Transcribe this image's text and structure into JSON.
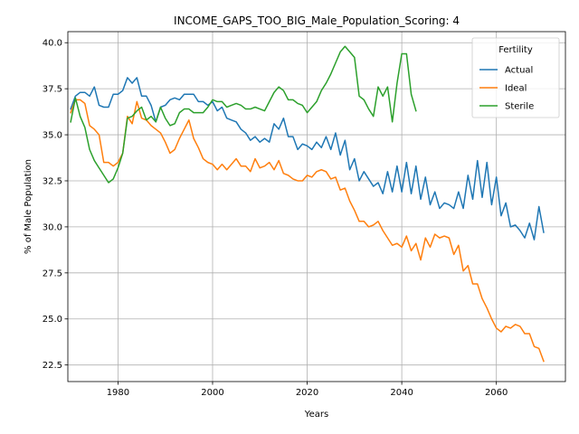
{
  "chart_data": {
    "type": "line",
    "title": "INCOME_GAPS_TOO_BIG_Male_Population_Scoring: 4",
    "xlabel": "Years",
    "ylabel": "% of Male Population",
    "xlim": [
      1969.4,
      2074.6
    ],
    "ylim": [
      21.6,
      40.6
    ],
    "xticks": [
      1980,
      2000,
      2020,
      2040,
      2060
    ],
    "yticks": [
      22.5,
      25.0,
      27.5,
      30.0,
      32.5,
      35.0,
      37.5,
      40.0
    ],
    "ytick_labels": [
      "22.5",
      "25.0",
      "27.5",
      "30.0",
      "32.5",
      "35.0",
      "37.5",
      "40.0"
    ],
    "grid": true,
    "legend": {
      "title": "Fertility",
      "placement": "top-right"
    },
    "series": [
      {
        "name": "Actual",
        "color": "#1f77b4",
        "x": [
          1970,
          1971,
          1972,
          1973,
          1974,
          1975,
          1976,
          1977,
          1978,
          1979,
          1980,
          1981,
          1982,
          1983,
          1984,
          1985,
          1986,
          1987,
          1988,
          1989,
          1990,
          1991,
          1992,
          1993,
          1994,
          1995,
          1996,
          1997,
          1998,
          1999,
          2000,
          2001,
          2002,
          2003,
          2004,
          2005,
          2006,
          2007,
          2008,
          2009,
          2010,
          2011,
          2012,
          2013,
          2014,
          2015,
          2016,
          2017,
          2018,
          2019,
          2020,
          2021,
          2022,
          2023,
          2024,
          2025,
          2026,
          2027,
          2028,
          2029,
          2030,
          2031,
          2032,
          2033,
          2034,
          2035,
          2036,
          2037,
          2038,
          2039,
          2040,
          2041,
          2042,
          2043,
          2044,
          2045,
          2046,
          2047,
          2048,
          2049,
          2050,
          2051,
          2052,
          2053,
          2054,
          2055,
          2056,
          2057,
          2058,
          2059,
          2060,
          2061,
          2062,
          2063,
          2064,
          2065,
          2066,
          2067,
          2068,
          2069,
          2070
        ],
        "values": [
          36.4,
          37.1,
          37.3,
          37.3,
          37.1,
          37.6,
          36.6,
          36.5,
          36.5,
          37.2,
          37.2,
          37.4,
          38.1,
          37.8,
          38.1,
          37.1,
          37.1,
          36.6,
          35.7,
          36.5,
          36.6,
          36.9,
          37.0,
          36.9,
          37.2,
          37.2,
          37.2,
          36.8,
          36.8,
          36.6,
          36.8,
          36.3,
          36.5,
          35.9,
          35.8,
          35.7,
          35.3,
          35.1,
          34.7,
          34.9,
          34.6,
          34.8,
          34.6,
          35.6,
          35.3,
          35.9,
          34.9,
          34.9,
          34.2,
          34.5,
          34.4,
          34.2,
          34.6,
          34.3,
          34.9,
          34.2,
          35.1,
          33.9,
          34.7,
          33.1,
          33.7,
          32.5,
          33.0,
          32.6,
          32.2,
          32.4,
          31.8,
          33.0,
          31.9,
          33.3,
          31.9,
          33.5,
          31.8,
          33.3,
          31.5,
          32.7,
          31.2,
          31.9,
          31.0,
          31.3,
          31.2,
          31.0,
          31.9,
          31.0,
          32.8,
          31.5,
          33.6,
          31.6,
          33.5,
          31.2,
          32.7,
          30.6,
          31.3,
          30.0,
          30.1,
          29.8,
          29.4,
          30.2,
          29.3,
          31.1,
          29.7
        ]
      },
      {
        "name": "Ideal",
        "color": "#ff7f0e",
        "x": [
          1970,
          1971,
          1972,
          1973,
          1974,
          1975,
          1976,
          1977,
          1978,
          1979,
          1980,
          1981,
          1982,
          1983,
          1984,
          1985,
          1986,
          1987,
          1988,
          1989,
          1990,
          1991,
          1992,
          1993,
          1994,
          1995,
          1996,
          1997,
          1998,
          1999,
          2000,
          2001,
          2002,
          2003,
          2004,
          2005,
          2006,
          2007,
          2008,
          2009,
          2010,
          2011,
          2012,
          2013,
          2014,
          2015,
          2016,
          2017,
          2018,
          2019,
          2020,
          2021,
          2022,
          2023,
          2024,
          2025,
          2026,
          2027,
          2028,
          2029,
          2030,
          2031,
          2032,
          2033,
          2034,
          2035,
          2036,
          2037,
          2038,
          2039,
          2040,
          2041,
          2042,
          2043,
          2044,
          2045,
          2046,
          2047,
          2048,
          2049,
          2050,
          2051,
          2052,
          2053,
          2054,
          2055,
          2056,
          2057,
          2058,
          2059,
          2060,
          2061,
          2062,
          2063,
          2064,
          2065,
          2066,
          2067,
          2068,
          2069,
          2070
        ],
        "values": [
          36.2,
          36.9,
          36.9,
          36.7,
          35.5,
          35.3,
          35.0,
          33.5,
          33.5,
          33.3,
          33.5,
          34.0,
          36.0,
          35.6,
          36.8,
          35.9,
          35.8,
          35.5,
          35.3,
          35.1,
          34.6,
          34.0,
          34.2,
          34.8,
          35.3,
          35.8,
          34.8,
          34.3,
          33.7,
          33.5,
          33.4,
          33.1,
          33.4,
          33.1,
          33.4,
          33.7,
          33.3,
          33.3,
          33.0,
          33.7,
          33.2,
          33.3,
          33.5,
          33.1,
          33.6,
          32.9,
          32.8,
          32.6,
          32.5,
          32.5,
          32.8,
          32.7,
          33.0,
          33.1,
          33.0,
          32.6,
          32.7,
          32.0,
          32.1,
          31.4,
          30.9,
          30.3,
          30.3,
          30.0,
          30.1,
          30.3,
          29.8,
          29.4,
          29.0,
          29.1,
          28.9,
          29.5,
          28.7,
          29.1,
          28.2,
          29.4,
          28.9,
          29.6,
          29.4,
          29.5,
          29.4,
          28.5,
          29.0,
          27.6,
          27.9,
          26.9,
          26.9,
          26.1,
          25.6,
          25.0,
          24.5,
          24.3,
          24.6,
          24.5,
          24.7,
          24.6,
          24.2,
          24.2,
          23.5,
          23.4,
          22.7
        ]
      },
      {
        "name": "Sterile",
        "color": "#2ca02c",
        "x": [
          1970,
          1971,
          1972,
          1973,
          1974,
          1975,
          1976,
          1977,
          1978,
          1979,
          1980,
          1981,
          1982,
          1983,
          1984,
          1985,
          1986,
          1987,
          1988,
          1989,
          1990,
          1991,
          1992,
          1993,
          1994,
          1995,
          1996,
          1997,
          1998,
          1999,
          2000,
          2001,
          2002,
          2003,
          2004,
          2005,
          2006,
          2007,
          2008,
          2009,
          2010,
          2011,
          2012,
          2013,
          2014,
          2015,
          2016,
          2017,
          2018,
          2019,
          2020,
          2021,
          2022,
          2023,
          2024,
          2025,
          2026,
          2027,
          2028,
          2029,
          2030,
          2031,
          2032,
          2033,
          2034,
          2035,
          2036,
          2037,
          2038,
          2039,
          2040,
          2041,
          2042,
          2043
        ],
        "values": [
          35.7,
          37.0,
          36.0,
          35.4,
          34.2,
          33.6,
          33.2,
          32.8,
          32.4,
          32.6,
          33.2,
          34.0,
          35.9,
          36.0,
          36.3,
          36.5,
          35.8,
          36.0,
          35.7,
          36.5,
          35.9,
          35.5,
          35.6,
          36.2,
          36.4,
          36.4,
          36.2,
          36.2,
          36.2,
          36.5,
          36.9,
          36.8,
          36.8,
          36.5,
          36.6,
          36.7,
          36.6,
          36.4,
          36.4,
          36.5,
          36.4,
          36.3,
          36.8,
          37.3,
          37.6,
          37.4,
          36.9,
          36.9,
          36.7,
          36.6,
          36.2,
          36.5,
          36.8,
          37.4,
          37.8,
          38.3,
          38.9,
          39.5,
          39.8,
          39.5,
          39.2,
          37.1,
          36.9,
          36.4,
          36.0,
          37.6,
          37.1,
          37.6,
          35.7,
          37.8,
          39.4,
          39.4,
          37.2,
          36.3
        ]
      }
    ]
  }
}
